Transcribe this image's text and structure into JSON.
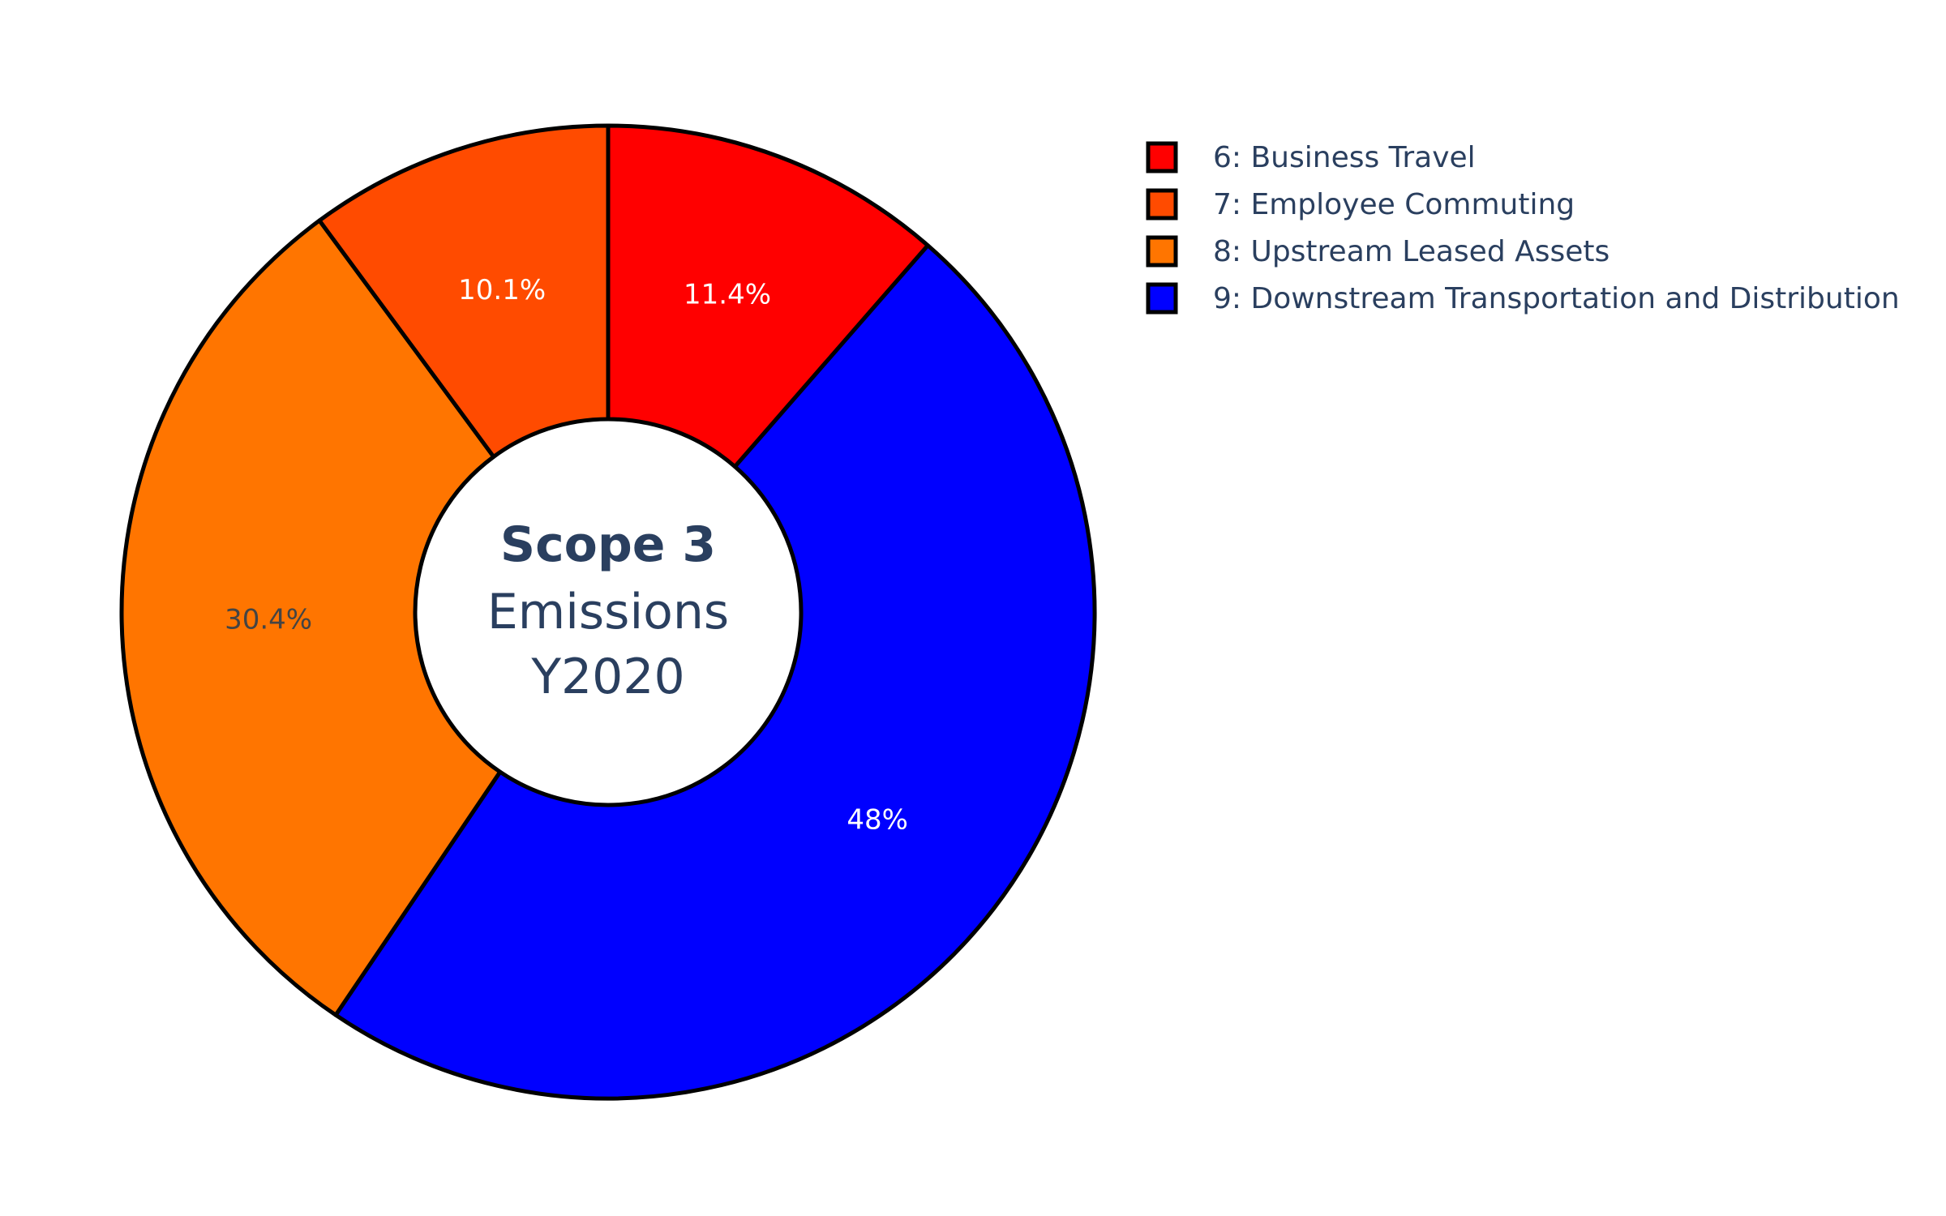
{
  "chart_data": {
    "type": "pie",
    "hole": true,
    "center_title": {
      "bold": "Scope 3",
      "lines": [
        "Emissions",
        "Y2020"
      ]
    },
    "slices": [
      {
        "label": "6: Business Travel",
        "percent_label": "11.4%",
        "value": 11.4,
        "color": "#ff0000",
        "text_color": "#ffffff"
      },
      {
        "label": "9: Downstream Transportation and Distribution",
        "percent_label": "48%",
        "value": 48.0,
        "color": "#0000ff",
        "text_color": "#ffffff"
      },
      {
        "label": "8: Upstream Leased Assets",
        "percent_label": "30.4%",
        "value": 30.4,
        "color": "#ff7500",
        "text_color": "#444444"
      },
      {
        "label": "7: Employee Commuting",
        "percent_label": "10.1%",
        "value": 10.1,
        "color": "#ff4b00",
        "text_color": "#ffffff"
      }
    ],
    "legend": {
      "placement": "top-right",
      "entries": [
        {
          "label": "6: Business Travel",
          "color": "#ff0000"
        },
        {
          "label": "7: Employee Commuting",
          "color": "#ff4b00"
        },
        {
          "label": "8: Upstream Leased Assets",
          "color": "#ff7500"
        },
        {
          "label": "9: Downstream Transportation and Distribution",
          "color": "#0000ff"
        }
      ]
    },
    "outline_color": "#000000"
  }
}
